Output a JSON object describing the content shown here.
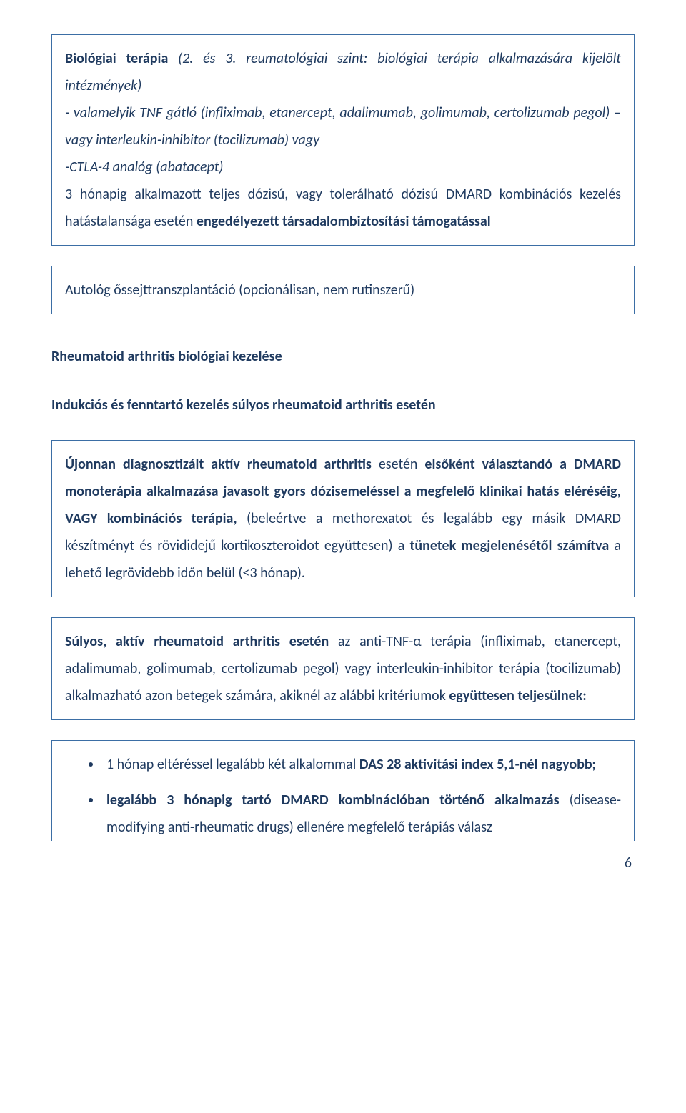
{
  "box1": {
    "line1_span1": "Biológiai terápia",
    "line1_span2": " (2. és 3. reumatológiai szint: biológiai terápia alkalmazására kijelölt intézmények)",
    "line2_span1": "- valamelyik TNF gátló (infliximab, etanercept, adalimumab, golimumab, certolizumab pegol) –vagy interleukin-inhibitor (tocilizumab) vagy",
    "line3_span1": "-CTLA-4 analóg (abatacept)",
    "line4_span1": "3 hónapig alkalmazott teljes dózisú, vagy tolerálható dózisú DMARD kombinációs kezelés hatástalansága esetén ",
    "line4_span2": "engedélyezett társadalombiztosítási támogatással"
  },
  "box2": {
    "text": "Autológ őssejttranszplantáció (opcionálisan, nem rutinszerű)"
  },
  "section_heading": "Rheumatoid arthritis  biológiai kezelése",
  "sub_heading": "Indukciós és fenntartó kezelés súlyos rheumatoid arthritis esetén",
  "box3": {
    "s1": "Újonnan diagnosztizált aktív rheumatoid arthritis",
    "s2": " esetén ",
    "s3": "elsőként választandó a DMARD monoterápia alkalmazása javasolt gyors dózisemeléssel a megfelelő klinikai hatás eléréséig, VAGY kombinációs terápia,",
    "s4": " (beleértve a methorexatot és legalább egy másik DMARD készítményt és rövididejű kortikoszteroidot együttesen) a ",
    "s5": "tünetek megjelenésétől számítva",
    "s6": " a lehető legrövidebb időn belül (<3 hónap)."
  },
  "box4": {
    "s1": "Súlyos, aktív rheumatoid arthritis esetén",
    "s2": " az anti-TNF-α terápia (infliximab, etanercept, adalimumab, golimumab, certolizumab pegol) vagy interleukin-inhibitor terápia (tocilizumab) alkalmazható azon betegek számára, akiknél az alábbi kritériumok ",
    "s3": "együttesen teljesülnek:"
  },
  "box5": {
    "item1_s1": "1 hónap eltéréssel legalább két alkalommal ",
    "item1_s2": "DAS 28 aktivitási index 5,1-nél nagyobb;",
    "item2_s1": "legalább 3 hónapig tartó DMARD kombinációban történő alkalmazás",
    "item2_s2": " (disease-modifying anti-rheumatic drugs) ellenére megfelelő terápiás válasz"
  },
  "page_number": "6"
}
